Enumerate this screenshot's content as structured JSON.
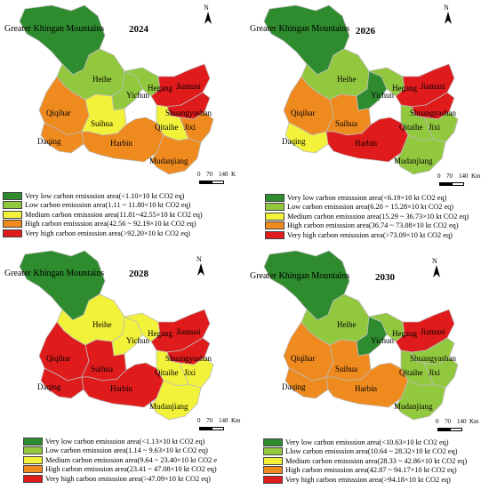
{
  "colors": {
    "very_low": "#2e8b2e",
    "low": "#92c83e",
    "medium": "#f2f23a",
    "high": "#ef8a1f",
    "very_high": "#e01b1b",
    "boundary": "#bcbcbc"
  },
  "regions": [
    "Greater Khingan Mountains",
    "Heihe",
    "Yichun",
    "Hegang",
    "Jiamusi",
    "Shuangyashan",
    "Qitaihe",
    "Jixi",
    "Qiqihar",
    "Suihua",
    "Daqing",
    "Harbin",
    "Mudanjiang"
  ],
  "panels": [
    {
      "year": "2024",
      "title": "Greater Khingan Mountains",
      "labels": {
        "heihe": "Heihe",
        "yichun": "Yichun",
        "hegang": "Hegang",
        "jiamusi": "Jiamusi",
        "shuangyashan": "Shuangyashan",
        "qitaihe": "Qitaihe",
        "jixi": "Jixi",
        "qiqihar": "Qiqihar",
        "suihua": "Suihua",
        "daqing": "Daqing",
        "harbin": "Harbin",
        "mudanjiang": "Mudanjiang"
      },
      "fills": {
        "gkm": "very_low",
        "heihe": "low",
        "yichun": "low",
        "hegang": "low",
        "jiamusi": "very_high",
        "shuangyashan": "very_high",
        "qitaihe": "medium",
        "jixi": "high",
        "qiqihar": "high",
        "suihua": "medium",
        "daqing": "high",
        "harbin": "high",
        "mudanjiang": "high"
      },
      "scale": {
        "t0": "0",
        "t1": "70",
        "t2": "140",
        "unit": "K"
      },
      "north": "N",
      "legend": [
        {
          "cls": "very_low",
          "text": "Very low carbon emisssion area(<1.10×10 kt CO2 eq)"
        },
        {
          "cls": "low",
          "text": "Low carbon emisssion area(1.11 ~ 11.80×10 kt CO2 eq)"
        },
        {
          "cls": "medium",
          "text": "Medium carbon emisssion area(11.81~42.55×10 kt CO2 eq)"
        },
        {
          "cls": "high",
          "text": "High  carbon emisssion area(42.56 ~ 92.19×10 kt CO2 eq)"
        },
        {
          "cls": "very_high",
          "text": "Very high carbon emisssion area(>92.20×10 kt CO2 eq)"
        }
      ]
    },
    {
      "year": "2026",
      "title": "Greater Khingan Mountains",
      "labels": {
        "heihe": "Heihe",
        "yichun": "Yichun",
        "hegang": "Hegang",
        "jiamusi": "Jiamusi",
        "shuangyashan": "Shuangyashan",
        "qitaihe": "Qitaihe",
        "jixi": "Jixi",
        "qiqihar": "Qiqihar",
        "suihua": "Suihua",
        "daqing": "Daqing",
        "harbin": "Harbin",
        "mudanjiang": "Mudanjiang"
      },
      "fills": {
        "gkm": "very_low",
        "heihe": "low",
        "yichun": "very_low",
        "hegang": "low",
        "jiamusi": "very_high",
        "shuangyashan": "very_high",
        "qitaihe": "low",
        "jixi": "low",
        "qiqihar": "high",
        "suihua": "high",
        "daqing": "medium",
        "harbin": "very_high",
        "mudanjiang": "low"
      },
      "scale": {
        "t0": "0",
        "t1": "70",
        "t2": "140",
        "unit": "Km"
      },
      "north": "N",
      "legend": [
        {
          "cls": "very_low",
          "text": "Very low carbon emisssion area(<6.19×10 kt CO2 eq)"
        },
        {
          "cls": "low",
          "text": "Low carbon emisssion area(6.20 ~ 15.28×10 kt CO2 eq)"
        },
        {
          "cls": "medium",
          "text": "Medium carbon emisssion area(15.29 ~ 36.73×10 kt CO2 eq)"
        },
        {
          "cls": "high",
          "text": "High carbon emisssion area(36.74 ~ 73.08×10 kt CO2 eq)"
        },
        {
          "cls": "very_high",
          "text": "Very high carbon emisssion area(>73.09×10 kt CO2 eq)"
        }
      ]
    },
    {
      "year": "2028",
      "title": "Greater Khingan Mountains",
      "labels": {
        "heihe": "Heihe",
        "yichun": "Yichun",
        "hegang": "Hegang",
        "jiamusi": "Jiamusi",
        "shuangyashan": "Shuangyashan",
        "qitaihe": "Qitaihe",
        "jixi": "Jixi",
        "qiqihar": "Qiqihar",
        "suihua": "Suihua",
        "daqing": "Daqing",
        "harbin": "Harbin",
        "mudanjiang": "Mudanjiang"
      },
      "fills": {
        "gkm": "very_low",
        "heihe": "medium",
        "yichun": "medium",
        "hegang": "medium",
        "jiamusi": "very_high",
        "shuangyashan": "very_high",
        "qitaihe": "medium",
        "jixi": "medium",
        "qiqihar": "very_high",
        "suihua": "very_high",
        "daqing": "very_high",
        "harbin": "very_high",
        "mudanjiang": "medium"
      },
      "scale": {
        "t0": "0",
        "t1": "70",
        "t2": "140",
        "unit": "Km"
      },
      "north": "N",
      "legend": [
        {
          "cls": "very_low",
          "text": "Very low carbon emisssion area(<1.13×10 kt CO2 eq)"
        },
        {
          "cls": "low",
          "text": "Low carbon emisssion area(1.14 ~ 9.63×10 kt CO2 eq)"
        },
        {
          "cls": "medium",
          "text": "Medium carbon emisssion area(9.64 ~ 23.40×10 kt CO2 e"
        },
        {
          "cls": "high",
          "text": "High carbon emisssion area(23.41 ~ 47.08×10 kt CO2 eq)"
        },
        {
          "cls": "very_high",
          "text": "Very high carbon emisssion area(>47.09×10 kt CO2 eq)"
        }
      ]
    },
    {
      "year": "2030",
      "title": "Greater Khingan Mountains",
      "labels": {
        "heihe": "Heihe",
        "yichun": "Yichun",
        "hegang": "Hegang",
        "jiamusi": "Jiamusi",
        "shuangyashan": "Shuangyashan",
        "qitaihe": "Qitaihe",
        "jixi": "Jixi",
        "qiqihar": "Qiqihar",
        "suihua": "Suihua",
        "daqing": "Daqing",
        "harbin": "Harbin",
        "mudanjiang": "Mudanjiang"
      },
      "fills": {
        "gkm": "very_low",
        "heihe": "low",
        "yichun": "very_low",
        "hegang": "low",
        "jiamusi": "very_high",
        "shuangyashan": "low",
        "qitaihe": "low",
        "jixi": "low",
        "qiqihar": "high",
        "suihua": "high",
        "daqing": "high",
        "harbin": "high",
        "mudanjiang": "low"
      },
      "scale": {
        "t0": "0",
        "t1": "70",
        "t2": "140",
        "unit": "Km"
      },
      "north": "N",
      "legend": [
        {
          "cls": "very_low",
          "text": "Very low carbon emisssion area(<10.63×10 kt CO2 eq)"
        },
        {
          "cls": "low",
          "text": "Llow carbon emisssion area(10.64 ~ 28.32×10 kt CO2 eq)"
        },
        {
          "cls": "medium",
          "text": "Medium carbon emisssion area(28.33 ~ 42.86×10 kt CO2 eq)"
        },
        {
          "cls": "high",
          "text": "High carbon emisssion area(42.87 ~ 94.17×10 kt CO2 eq)"
        },
        {
          "cls": "very_high",
          "text": "Very high carbon emisssion area(>94.18×10 kt CO2 eq)"
        }
      ]
    }
  ]
}
